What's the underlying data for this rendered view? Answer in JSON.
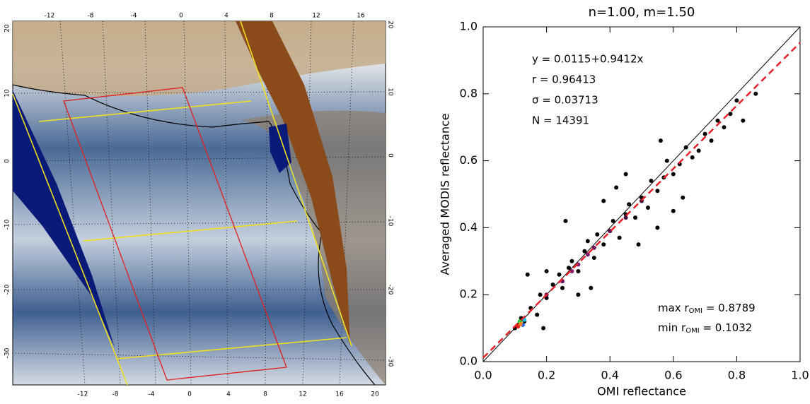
{
  "map": {
    "top_lon_labels": [
      "-12",
      "-8",
      "-4",
      "0",
      "4",
      "8",
      "12",
      "16"
    ],
    "bottom_lon_labels": [
      "-12",
      "-8",
      "-4",
      "0",
      "4",
      "8",
      "12",
      "16",
      "20"
    ],
    "left_lat_labels": [
      "20",
      "10",
      "0",
      "-10",
      "-20",
      "-30"
    ],
    "right_lat_labels": [
      "20",
      "10",
      "0",
      "-10",
      "-20",
      "-30"
    ]
  },
  "chart_data": {
    "type": "scatter",
    "title": "n=1.00, m=1.50",
    "x_label": "OMI reflectance",
    "y_label": "Averaged MODIS reflectance",
    "xlim": [
      0,
      1
    ],
    "ylim": [
      0,
      1
    ],
    "xticks": [
      {
        "value": 0,
        "label": "0.0"
      },
      {
        "value": 0.2,
        "label": "0.2"
      },
      {
        "value": 0.4,
        "label": "0.4"
      },
      {
        "value": 0.6,
        "label": "0.6"
      },
      {
        "value": 0.8,
        "label": "0.8"
      },
      {
        "value": 1,
        "label": "1.0"
      }
    ],
    "yticks": [
      {
        "value": 0,
        "label": "0.0"
      },
      {
        "value": 0.2,
        "label": "0.2"
      },
      {
        "value": 0.4,
        "label": "0.4"
      },
      {
        "value": 0.6,
        "label": "0.6"
      },
      {
        "value": 0.8,
        "label": "0.8"
      },
      {
        "value": 1,
        "label": "1.0"
      }
    ],
    "fit": {
      "intercept": 0.0115,
      "slope": 0.9412,
      "color": "#e8202a"
    },
    "stats": [
      "y = 0.0115+0.9412x",
      "r = 0.96413",
      "σ = 0.03713",
      "N = 14391"
    ],
    "range_labels": [
      {
        "prefix": "max r",
        "sub": "OMI",
        "suffix": " = 0.8789"
      },
      {
        "prefix": "min r",
        "sub": "OMI",
        "suffix": " = 0.1032"
      }
    ],
    "points": {
      "color": "#000000",
      "x": [
        0.1,
        0.11,
        0.12,
        0.13,
        0.15,
        0.17,
        0.18,
        0.2,
        0.22,
        0.24,
        0.25,
        0.27,
        0.28,
        0.3,
        0.32,
        0.33,
        0.35,
        0.36,
        0.38,
        0.4,
        0.41,
        0.43,
        0.45,
        0.46,
        0.48,
        0.5,
        0.52,
        0.53,
        0.55,
        0.57,
        0.58,
        0.6,
        0.62,
        0.64,
        0.66,
        0.68,
        0.7,
        0.72,
        0.74,
        0.76,
        0.78,
        0.8,
        0.82,
        0.86,
        0.14,
        0.19,
        0.26,
        0.34,
        0.42,
        0.49,
        0.56,
        0.63,
        0.38,
        0.55,
        0.3,
        0.45,
        0.6,
        0.2
      ],
      "y": [
        0.1,
        0.11,
        0.13,
        0.12,
        0.16,
        0.14,
        0.2,
        0.19,
        0.23,
        0.26,
        0.22,
        0.28,
        0.3,
        0.27,
        0.33,
        0.36,
        0.31,
        0.38,
        0.35,
        0.39,
        0.42,
        0.37,
        0.44,
        0.47,
        0.43,
        0.49,
        0.46,
        0.54,
        0.51,
        0.55,
        0.6,
        0.56,
        0.59,
        0.64,
        0.61,
        0.63,
        0.68,
        0.66,
        0.72,
        0.7,
        0.74,
        0.78,
        0.72,
        0.8,
        0.26,
        0.1,
        0.42,
        0.22,
        0.52,
        0.35,
        0.66,
        0.49,
        0.48,
        0.4,
        0.2,
        0.56,
        0.45,
        0.27
      ]
    },
    "dense_points": {
      "x": [
        0.2,
        0.25,
        0.3,
        0.35,
        0.4,
        0.45,
        0.5,
        0.28,
        0.33,
        0.11,
        0.12,
        0.115,
        0.125,
        0.13,
        0.118
      ],
      "y": [
        0.2,
        0.24,
        0.29,
        0.34,
        0.39,
        0.43,
        0.48,
        0.27,
        0.32,
        0.105,
        0.115,
        0.12,
        0.11,
        0.125,
        0.112
      ],
      "colors": [
        "#5a1050",
        "#6a1460",
        "#7a1a70",
        "#6a1460",
        "#5a1050",
        "#4a0c40",
        "#3a0a30",
        "#8a2070",
        "#7a1a70",
        "#e82020",
        "#f0e020",
        "#20d040",
        "#2060e0",
        "#20c0e0",
        "#f08020"
      ]
    }
  }
}
